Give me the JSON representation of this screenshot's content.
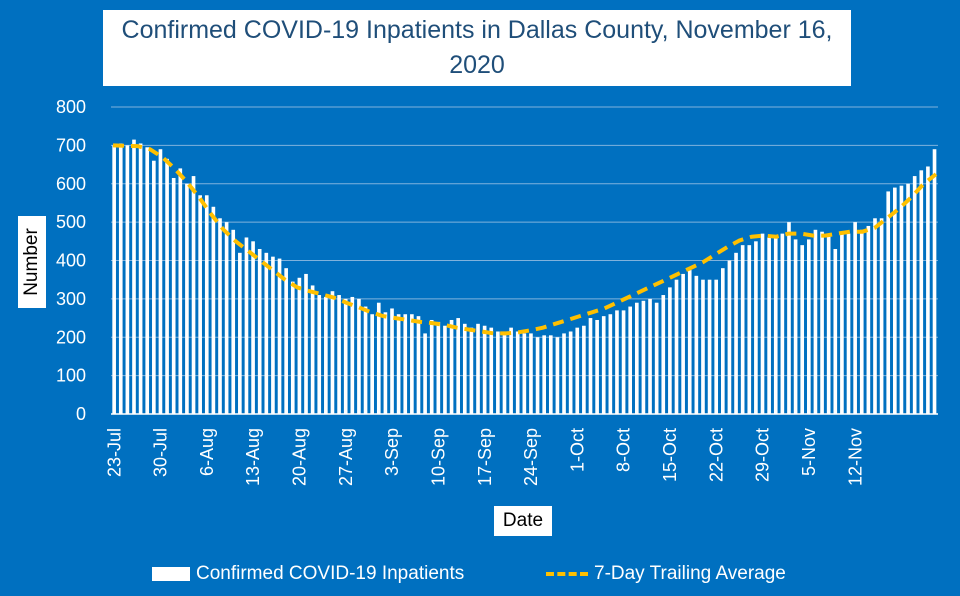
{
  "chart_data": {
    "type": "bar",
    "title": "Confirmed COVID-19 Inpatients in Dallas County, November 16, 2020",
    "xlabel": "Date",
    "ylabel": "Number",
    "ylim": [
      0,
      800
    ],
    "yticks": [
      "0",
      "100",
      "200",
      "300",
      "400",
      "500",
      "600",
      "700",
      "800"
    ],
    "grid": true,
    "legend_position": "bottom",
    "xtick_labels": [
      "23-Jul",
      "30-Jul",
      "6-Aug",
      "13-Aug",
      "20-Aug",
      "27-Aug",
      "3-Sep",
      "10-Sep",
      "17-Sep",
      "24-Sep",
      "1-Oct",
      "8-Oct",
      "15-Oct",
      "22-Oct",
      "29-Oct",
      "5-Nov",
      "12-Nov"
    ],
    "x_start": "23-Jul",
    "x_end": "16-Nov",
    "series": [
      {
        "name": "Confirmed COVID-19 Inpatients",
        "kind": "bar",
        "color": "#ffffff",
        "values": [
          700,
          705,
          700,
          715,
          705,
          695,
          660,
          690,
          665,
          615,
          640,
          600,
          620,
          570,
          570,
          540,
          510,
          500,
          480,
          420,
          460,
          450,
          430,
          420,
          410,
          405,
          380,
          345,
          355,
          365,
          335,
          310,
          305,
          320,
          310,
          300,
          305,
          300,
          280,
          260,
          290,
          265,
          275,
          260,
          260,
          260,
          255,
          210,
          245,
          240,
          230,
          245,
          250,
          235,
          225,
          235,
          230,
          225,
          215,
          215,
          225,
          215,
          210,
          210,
          200,
          205,
          205,
          200,
          210,
          215,
          225,
          230,
          250,
          245,
          255,
          260,
          270,
          270,
          280,
          290,
          295,
          300,
          290,
          310,
          330,
          350,
          365,
          375,
          360,
          350,
          350,
          350,
          380,
          400,
          420,
          440,
          440,
          450,
          470,
          460,
          460,
          470,
          500,
          455,
          440,
          455,
          480,
          475,
          470,
          430,
          470,
          470,
          500,
          480,
          490,
          510,
          510,
          580,
          590,
          595,
          600,
          620,
          635,
          645,
          690
        ]
      },
      {
        "name": "7-Day Trailing Average",
        "kind": "line",
        "color": "#ffc000",
        "points": [
          [
            0,
            700
          ],
          [
            3,
            699
          ],
          [
            6,
            698
          ],
          [
            9,
            690
          ],
          [
            12,
            670
          ],
          [
            15,
            640
          ],
          [
            18,
            605
          ],
          [
            21,
            565
          ],
          [
            24,
            520
          ],
          [
            27,
            480
          ],
          [
            30,
            450
          ],
          [
            33,
            425
          ],
          [
            36,
            400
          ],
          [
            39,
            375
          ],
          [
            42,
            350
          ],
          [
            45,
            330
          ],
          [
            48,
            320
          ],
          [
            51,
            312
          ],
          [
            54,
            303
          ],
          [
            57,
            290
          ],
          [
            60,
            278
          ],
          [
            63,
            265
          ],
          [
            66,
            255
          ],
          [
            69,
            250
          ],
          [
            72,
            245
          ],
          [
            75,
            240
          ],
          [
            78,
            237
          ],
          [
            81,
            232
          ],
          [
            84,
            225
          ],
          [
            87,
            220
          ],
          [
            90,
            215
          ],
          [
            93,
            210
          ],
          [
            96,
            210
          ],
          [
            99,
            213
          ],
          [
            102,
            218
          ],
          [
            105,
            225
          ],
          [
            108,
            235
          ],
          [
            111,
            245
          ],
          [
            114,
            255
          ],
          [
            117,
            265
          ],
          [
            120,
            275
          ],
          [
            123,
            290
          ],
          [
            126,
            305
          ],
          [
            129,
            320
          ],
          [
            132,
            335
          ],
          [
            135,
            350
          ],
          [
            138,
            365
          ],
          [
            141,
            380
          ],
          [
            144,
            395
          ],
          [
            147,
            415
          ],
          [
            150,
            435
          ],
          [
            153,
            452
          ],
          [
            156,
            462
          ],
          [
            159,
            465
          ],
          [
            162,
            462
          ],
          [
            165,
            470
          ],
          [
            168,
            470
          ],
          [
            171,
            465
          ],
          [
            174,
            465
          ],
          [
            177,
            470
          ],
          [
            180,
            475
          ],
          [
            183,
            475
          ],
          [
            186,
            485
          ],
          [
            189,
            510
          ],
          [
            192,
            535
          ],
          [
            195,
            565
          ],
          [
            198,
            600
          ],
          [
            201,
            625
          ]
        ],
        "x_range": [
          0,
          201
        ]
      }
    ]
  }
}
